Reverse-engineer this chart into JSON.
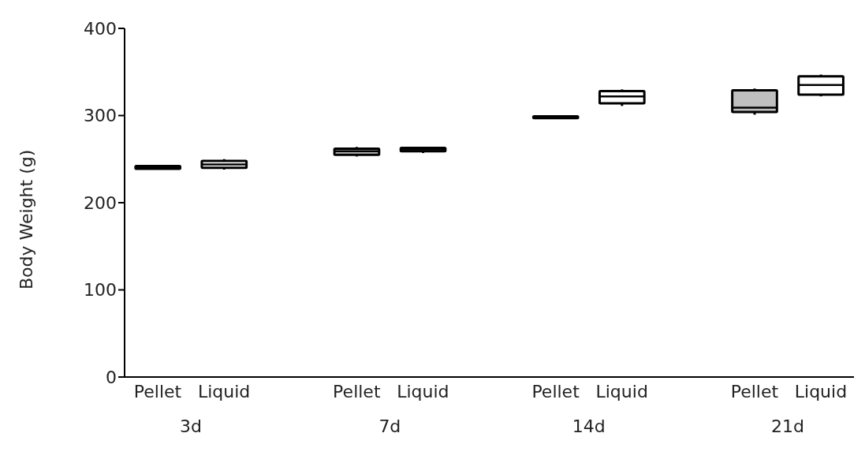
{
  "chart_data": {
    "type": "box",
    "ylabel": "Body Weight (g)",
    "categories": [
      "Pellet",
      "Liquid",
      "Pellet",
      "Liquid",
      "Pellet",
      "Liquid",
      "Pellet",
      "Liquid"
    ],
    "annotations": [
      "3d",
      "7d",
      "14d",
      "21d"
    ],
    "colors": [
      "#bfbfbf",
      "#ffffff",
      "#bfbfbf",
      "#ffffff",
      "#bfbfbf",
      "#ffffff",
      "#bfbfbf",
      "#ffffff"
    ],
    "boxes": [
      {
        "low": 238,
        "q1": 239,
        "median": 240,
        "q3": 242,
        "high": 243
      },
      {
        "low": 238,
        "q1": 240,
        "median": 244,
        "q3": 248,
        "high": 250
      },
      {
        "low": 253,
        "q1": 255,
        "median": 259,
        "q3": 262,
        "high": 264
      },
      {
        "low": 257,
        "q1": 259,
        "median": 261,
        "q3": 263,
        "high": 264
      },
      {
        "low": 296,
        "q1": 297,
        "median": 298,
        "q3": 299,
        "high": 300
      },
      {
        "low": 311,
        "q1": 314,
        "median": 322,
        "q3": 328,
        "high": 330
      },
      {
        "low": 301,
        "q1": 304,
        "median": 309,
        "q3": 329,
        "high": 331
      },
      {
        "low": 322,
        "q1": 324,
        "median": 335,
        "q3": 345,
        "high": 347
      }
    ],
    "ylim": [
      0,
      400
    ],
    "yticks": [
      0,
      100,
      200,
      300,
      400
    ],
    "grid": false
  }
}
